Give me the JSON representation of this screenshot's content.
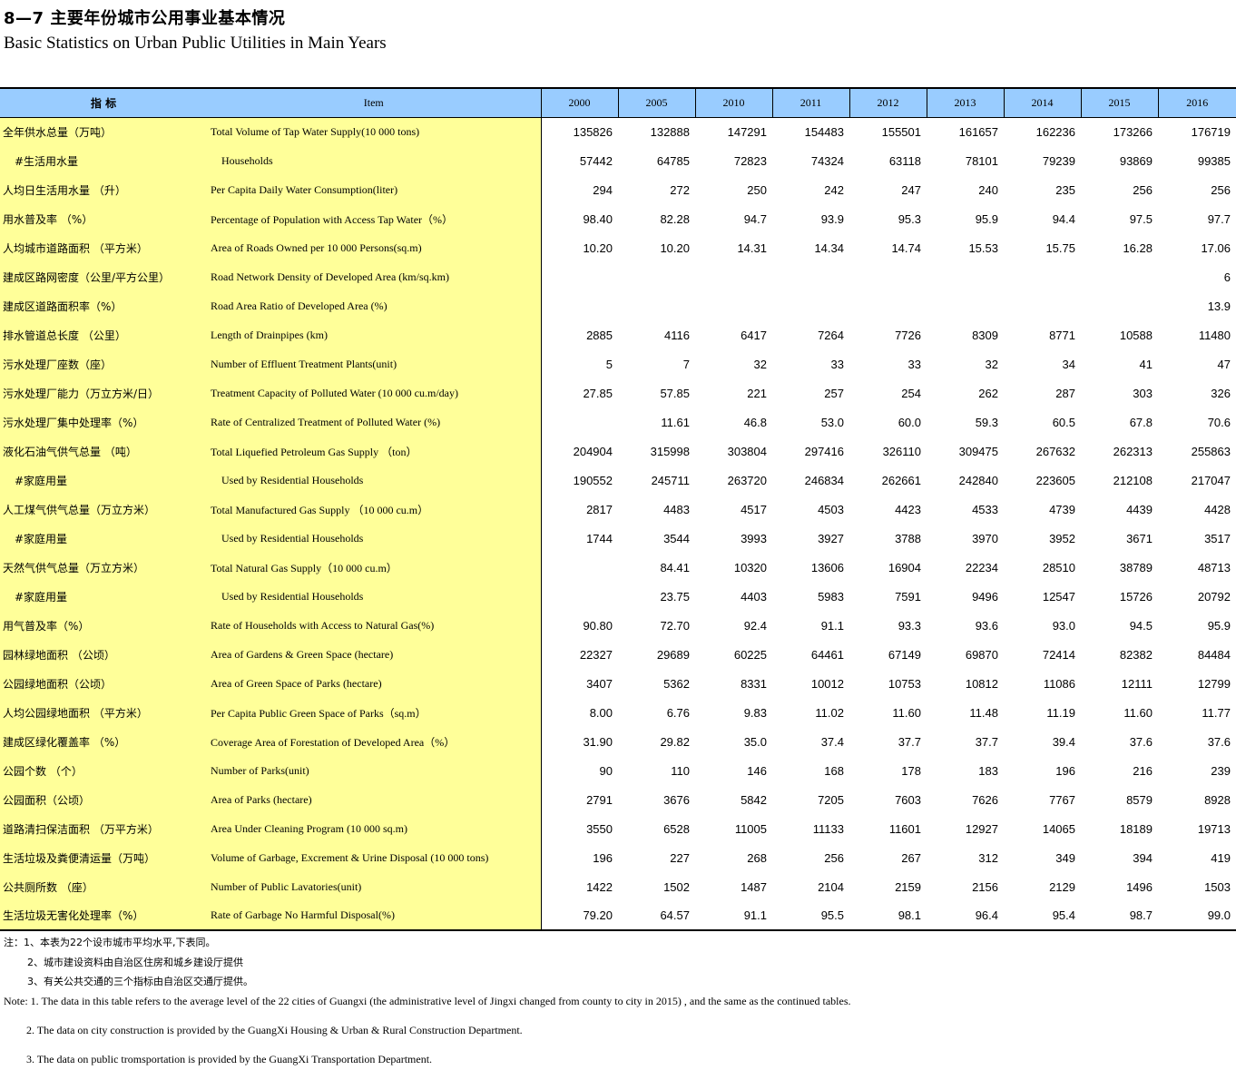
{
  "title_cn": "8—7 主要年份城市公用事业基本情况",
  "title_en": "Basic Statistics on Urban Public Utilities in Main Years",
  "header": {
    "indicator_cn": "指  标",
    "item_en": "Item",
    "years": [
      "2000",
      "2005",
      "2010",
      "2011",
      "2012",
      "2013",
      "2014",
      "2015",
      "2016"
    ]
  },
  "rows": [
    {
      "cn": "全年供水总量（万吨）",
      "en": "Total Volume of Tap Water Supply(10 000 tons)",
      "sub": false,
      "values": [
        "135826",
        "132888",
        "147291",
        "154483",
        "155501",
        "161657",
        "162236",
        "173266",
        "176719"
      ]
    },
    {
      "cn": "#生活用水量",
      "en": "Households",
      "sub": true,
      "values": [
        "57442",
        "64785",
        "72823",
        "74324",
        "63118",
        "78101",
        "79239",
        "93869",
        "99385"
      ]
    },
    {
      "cn": "人均日生活用水量 （升）",
      "en": "Per Capita Daily Water Consumption(liter)",
      "sub": false,
      "values": [
        "294",
        "272",
        "250",
        "242",
        "247",
        "240",
        "235",
        "256",
        "256"
      ]
    },
    {
      "cn": "用水普及率 （%）",
      "en": "Percentage of Population with Access Tap Water（%）",
      "sub": false,
      "values": [
        "98.40",
        "82.28",
        "94.7",
        "93.9",
        "95.3",
        "95.9",
        "94.4",
        "97.5",
        "97.7"
      ]
    },
    {
      "cn": "人均城市道路面积 （平方米）",
      "en": "Area of Roads Owned per 10 000 Persons(sq.m)",
      "sub": false,
      "values": [
        "10.20",
        "10.20",
        "14.31",
        "14.34",
        "14.74",
        "15.53",
        "15.75",
        "16.28",
        "17.06"
      ]
    },
    {
      "cn": "建成区路网密度（公里/平方公里）",
      "en": "Road Network Density of Developed Area (km/sq.km)",
      "sub": false,
      "values": [
        "",
        "",
        "",
        "",
        "",
        "",
        "",
        "",
        "6"
      ]
    },
    {
      "cn": "建成区道路面积率（%）",
      "en": "Road Area Ratio of Developed Area (%)",
      "sub": false,
      "values": [
        "",
        "",
        "",
        "",
        "",
        "",
        "",
        "",
        "13.9"
      ]
    },
    {
      "cn": "排水管道总长度 （公里）",
      "en": "Length of Drainpipes (km)",
      "sub": false,
      "values": [
        "2885",
        "4116",
        "6417",
        "7264",
        "7726",
        "8309",
        "8771",
        "10588",
        "11480"
      ]
    },
    {
      "cn": "污水处理厂座数（座）",
      "en": "Number of Effluent Treatment Plants(unit)",
      "sub": false,
      "values": [
        "5",
        "7",
        "32",
        "33",
        "33",
        "32",
        "34",
        "41",
        "47"
      ]
    },
    {
      "cn": "污水处理厂能力（万立方米/日）",
      "en": "Treatment Capacity of Polluted Water (10 000 cu.m/day)",
      "sub": false,
      "values": [
        "27.85",
        "57.85",
        "221",
        "257",
        "254",
        "262",
        "287",
        "303",
        "326"
      ]
    },
    {
      "cn": "污水处理厂集中处理率（%）",
      "en": "Rate of Centralized Treatment of Polluted Water (%)",
      "sub": false,
      "values": [
        "",
        "11.61",
        "46.8",
        "53.0",
        "60.0",
        "59.3",
        "60.5",
        "67.8",
        "70.6"
      ]
    },
    {
      "cn": "液化石油气供气总量 （吨）",
      "en": "Total Liquefied Petroleum Gas Supply （ton）",
      "sub": false,
      "values": [
        "204904",
        "315998",
        "303804",
        "297416",
        "326110",
        "309475",
        "267632",
        "262313",
        "255863"
      ]
    },
    {
      "cn": "#家庭用量",
      "en": "Used by Residential Households",
      "sub": true,
      "values": [
        "190552",
        "245711",
        "263720",
        "246834",
        "262661",
        "242840",
        "223605",
        "212108",
        "217047"
      ]
    },
    {
      "cn": "人工煤气供气总量（万立方米）",
      "en": "Total Manufactured Gas Supply （10 000 cu.m）",
      "sub": false,
      "values": [
        "2817",
        "4483",
        "4517",
        "4503",
        "4423",
        "4533",
        "4739",
        "4439",
        "4428"
      ]
    },
    {
      "cn": "#家庭用量",
      "en": "Used by Residential Households",
      "sub": true,
      "values": [
        "1744",
        "3544",
        "3993",
        "3927",
        "3788",
        "3970",
        "3952",
        "3671",
        "3517"
      ]
    },
    {
      "cn": "天然气供气总量（万立方米）",
      "en": "Total Natural Gas Supply（10 000 cu.m）",
      "sub": false,
      "values": [
        "",
        "84.41",
        "10320",
        "13606",
        "16904",
        "22234",
        "28510",
        "38789",
        "48713"
      ]
    },
    {
      "cn": "#家庭用量",
      "en": "Used by Residential Households",
      "sub": true,
      "values": [
        "",
        "23.75",
        "4403",
        "5983",
        "7591",
        "9496",
        "12547",
        "15726",
        "20792"
      ]
    },
    {
      "cn": "用气普及率（%）",
      "en": "Rate of Households with Access to Natural Gas(%)",
      "sub": false,
      "values": [
        "90.80",
        "72.70",
        "92.4",
        "91.1",
        "93.3",
        "93.6",
        "93.0",
        "94.5",
        "95.9"
      ]
    },
    {
      "cn": "园林绿地面积 （公顷）",
      "en": "Area of Gardens & Green Space (hectare)",
      "sub": false,
      "values": [
        "22327",
        "29689",
        "60225",
        "64461",
        "67149",
        "69870",
        "72414",
        "82382",
        "84484"
      ]
    },
    {
      "cn": "公园绿地面积（公顷）",
      "en": "Area of Green Space of Parks (hectare)",
      "sub": false,
      "values": [
        "3407",
        "5362",
        "8331",
        "10012",
        "10753",
        "10812",
        "11086",
        "12111",
        "12799"
      ]
    },
    {
      "cn": "人均公园绿地面积 （平方米）",
      "en": "Per Capita Public Green Space of Parks（sq.m）",
      "sub": false,
      "values": [
        "8.00",
        "6.76",
        "9.83",
        "11.02",
        "11.60",
        "11.48",
        "11.19",
        "11.60",
        "11.77"
      ]
    },
    {
      "cn": "建成区绿化覆盖率 （%）",
      "en": "Coverage Area of Forestation of Developed Area（%）",
      "sub": false,
      "values": [
        "31.90",
        "29.82",
        "35.0",
        "37.4",
        "37.7",
        "37.7",
        "39.4",
        "37.6",
        "37.6"
      ]
    },
    {
      "cn": "公园个数 （个）",
      "en": "Number of Parks(unit)",
      "sub": false,
      "values": [
        "90",
        "110",
        "146",
        "168",
        "178",
        "183",
        "196",
        "216",
        "239"
      ]
    },
    {
      "cn": "公园面积（公顷）",
      "en": "Area of Parks (hectare)",
      "sub": false,
      "values": [
        "2791",
        "3676",
        "5842",
        "7205",
        "7603",
        "7626",
        "7767",
        "8579",
        "8928"
      ]
    },
    {
      "cn": "道路清扫保洁面积 （万平方米）",
      "en": "Area Under Cleaning Program (10 000 sq.m)",
      "sub": false,
      "values": [
        "3550",
        "6528",
        "11005",
        "11133",
        "11601",
        "12927",
        "14065",
        "18189",
        "19713"
      ]
    },
    {
      "cn": "生活垃圾及粪便清运量（万吨）",
      "en": "Volume of Garbage, Excrement & Urine Disposal (10 000 tons)",
      "sub": false,
      "values": [
        "196",
        "227",
        "268",
        "256",
        "267",
        "312",
        "349",
        "394",
        "419"
      ]
    },
    {
      "cn": "公共厕所数 （座）",
      "en": "Number of Public Lavatories(unit)",
      "sub": false,
      "values": [
        "1422",
        "1502",
        "1487",
        "2104",
        "2159",
        "2156",
        "2129",
        "1496",
        "1503"
      ]
    },
    {
      "cn": "生活垃圾无害化处理率（%）",
      "en": "Rate of Garbage No Harmful Disposal(%)",
      "sub": false,
      "values": [
        "79.20",
        "64.57",
        "91.1",
        "95.5",
        "98.1",
        "96.4",
        "95.4",
        "98.7",
        "99.0"
      ]
    }
  ],
  "notes": {
    "cn": [
      "注：1、本表为22个设市城市平均水平,下表同。",
      "2、城市建设资料由自治区住房和城乡建设厅提供",
      "3、有关公共交通的三个指标由自治区交通厅提供。"
    ],
    "en": [
      "Note: 1. The data in this table refers to the average level of the 22 cities of Guangxi (the administrative level of Jingxi changed from county to city in 2015) , and the same as the continued tables.",
      "2. The data on city construction is provided by the GuangXi Housing & Urban & Rural Construction Department.",
      "3. The data on public tromsportation is provided by the GuangXi Transportation Department."
    ]
  }
}
